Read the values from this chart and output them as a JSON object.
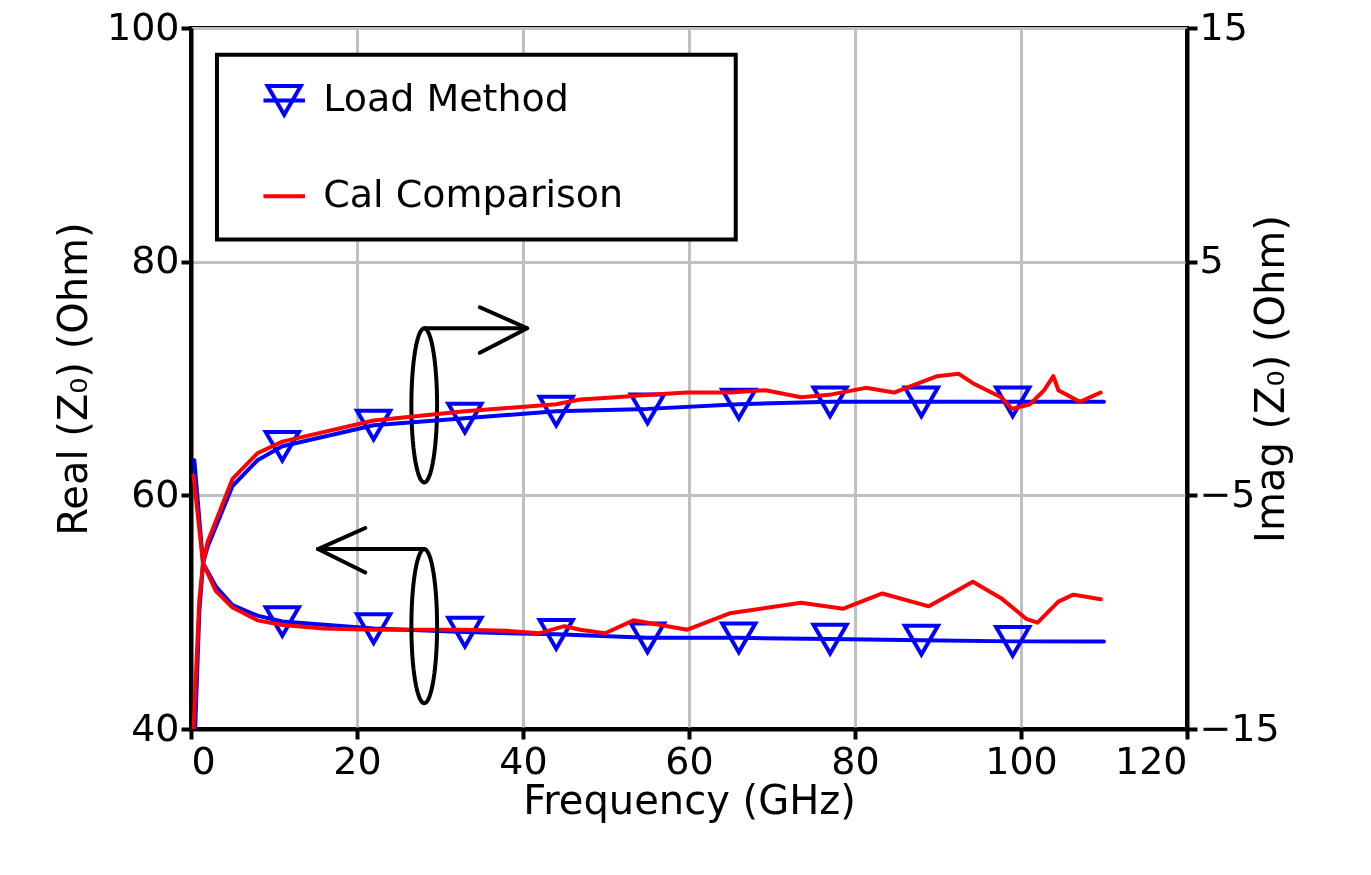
{
  "chart_data": {
    "type": "line",
    "xlabel": "Frequency (GHz)",
    "ylabel": "Real (Z₀) (Ohm)",
    "y2label": "Imag (Z₀) (Ohm)",
    "xlim": [
      0,
      120
    ],
    "xticks": [
      0,
      20,
      40,
      60,
      80,
      100,
      120
    ],
    "ylim": [
      40,
      100
    ],
    "yticks": [
      40,
      60,
      80,
      100
    ],
    "y2lim": [
      -15,
      15
    ],
    "y2ticks": [
      -15,
      -5,
      5,
      15
    ],
    "grid": true,
    "legend": "top left",
    "series": [
      {
        "color": "#0000ff",
        "axis": "y",
        "x": [
          0.4,
          1.45,
          3,
          5,
          8,
          11,
          22,
          33,
          44,
          55,
          66,
          77,
          88,
          99,
          110
        ],
        "values": [
          63.0,
          54.2,
          52.2,
          50.6,
          49.7,
          49.2,
          48.6,
          48.3,
          48.1,
          47.8,
          47.8,
          47.7,
          47.6,
          47.5,
          47.5
        ]
      },
      {
        "name": "Load Method",
        "type": "scatter",
        "color": "#0000ff",
        "axis": "y",
        "marker": "triangle",
        "x": [
          11,
          22,
          33,
          44,
          55,
          66,
          77,
          88,
          99
        ],
        "values": [
          49.2,
          48.6,
          48.3,
          48.1,
          47.8,
          47.8,
          47.7,
          47.6,
          47.5
        ]
      },
      {
        "name": "Cal Comparison",
        "color": "#ff0000",
        "axis": "y",
        "x": [
          0.3,
          1.45,
          3,
          5,
          8,
          11,
          16,
          22,
          33,
          38,
          42,
          45,
          46.9,
          49.9,
          53.3,
          59.8,
          64.9,
          73.5,
          78.6,
          83.3,
          88.9,
          94.2,
          97.6,
          100.7,
          102,
          104.5,
          106.3,
          109.6
        ],
        "values": [
          61.7,
          54.2,
          51.8,
          50.4,
          49.3,
          48.9,
          48.6,
          48.5,
          48.5,
          48.4,
          48.2,
          48.8,
          48.5,
          48.2,
          49.3,
          48.5,
          49.9,
          50.8,
          50.3,
          51.6,
          50.5,
          52.6,
          51.2,
          49.4,
          49.1,
          50.9,
          51.5,
          51.1
        ]
      },
      {
        "color": "#0000ff",
        "axis": "y2",
        "x": [
          0.5,
          1,
          1.45,
          2,
          5,
          8,
          11,
          22,
          33,
          44,
          55,
          66,
          77,
          88,
          99,
          110
        ],
        "values": [
          -15,
          -10,
          -7.9,
          -7.2,
          -4.6,
          -3.5,
          -2.9,
          -2.0,
          -1.7,
          -1.4,
          -1.3,
          -1.1,
          -1.0,
          -1.0,
          -1.0,
          -1.0
        ]
      },
      {
        "type": "scatter",
        "color": "#0000ff",
        "axis": "y2",
        "marker": "triangle",
        "x": [
          11,
          22,
          33,
          44,
          55,
          66,
          77,
          88,
          99
        ],
        "values": [
          -2.9,
          -2.0,
          -1.7,
          -1.4,
          -1.3,
          -1.1,
          -1.0,
          -1.0,
          -1.0
        ]
      },
      {
        "color": "#ff0000",
        "axis": "y2",
        "x": [
          0.3,
          1,
          1.45,
          2,
          5,
          8,
          11,
          22,
          33,
          44,
          46.9,
          51.2,
          55.2,
          59.8,
          64.9,
          69.2,
          73.5,
          76.9,
          81.3,
          84.7,
          89.9,
          92.5,
          94.2,
          97.6,
          98.9,
          101.1,
          102.8,
          103.9,
          104.5,
          107.1,
          109.6
        ],
        "values": [
          -15,
          -9.5,
          -7.9,
          -7.0,
          -4.3,
          -3.2,
          -2.7,
          -1.8,
          -1.4,
          -1.1,
          -0.9,
          -0.8,
          -0.7,
          -0.6,
          -0.6,
          -0.5,
          -0.8,
          -0.7,
          -0.4,
          -0.6,
          0.1,
          0.2,
          -0.2,
          -0.8,
          -1.3,
          -1.1,
          -0.5,
          0.1,
          -0.5,
          -1.0,
          -0.6
        ]
      }
    ]
  }
}
